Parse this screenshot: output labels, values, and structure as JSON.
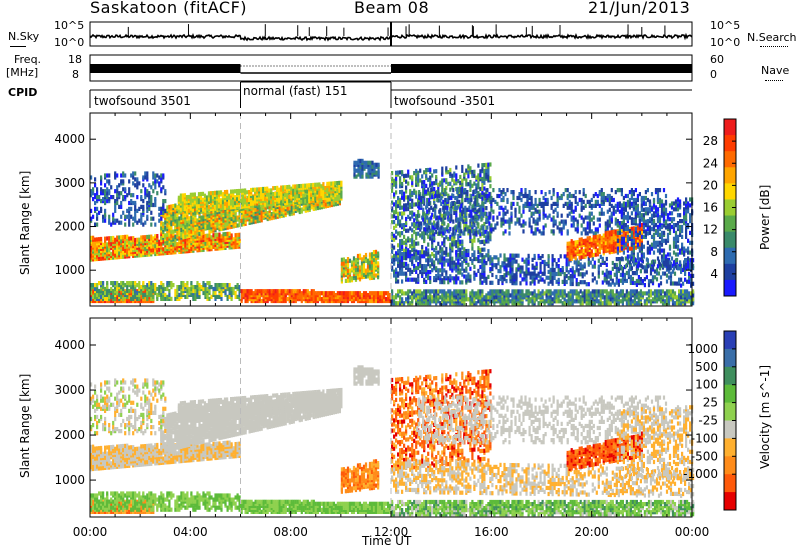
{
  "header": {
    "station": "Saskatoon (fitACF)",
    "beam": "Beam 08",
    "date": "21/Jun/2013"
  },
  "side_labels": {
    "nsky": "N.Sky",
    "freq_line1": "Freq.",
    "freq_line2": "[MHz]",
    "cpid": "CPID",
    "nsearch": "N.Search",
    "nave": "Nave"
  },
  "strip_ticks": {
    "nsky_top": "10^5",
    "nsky_bottom": "10^0",
    "freq_top": "18",
    "freq_bottom": "8",
    "nsearch_top": "10^5",
    "nsearch_bottom": "10^0",
    "nave_top": "60",
    "nave_bottom": "0"
  },
  "cpid_segments": [
    {
      "label": "twofsound 3501",
      "start_hour": 0,
      "end_hour": 6
    },
    {
      "label": "normal (fast) 151",
      "start_hour": 6,
      "end_hour": 12
    },
    {
      "label": "twofsound -3501",
      "start_hour": 12,
      "end_hour": 24
    }
  ],
  "chart_data": [
    {
      "type": "heatmap",
      "title": "",
      "xlabel": "Time UT",
      "ylabel": "Slant Range [km]",
      "x_ticks": [
        "00:00",
        "04:00",
        "08:00",
        "12:00",
        "16:00",
        "20:00",
        "00:00"
      ],
      "xlim_hours": [
        0,
        24
      ],
      "y_ticks": [
        "1000",
        "2000",
        "3000",
        "4000"
      ],
      "ylim": [
        180,
        4600
      ],
      "colorbar": {
        "label": "Power [dB]",
        "ticks": [
          "4",
          "8",
          "12",
          "16",
          "20",
          "24",
          "28"
        ],
        "range": [
          0,
          32
        ],
        "colors": [
          "#1a1aff",
          "#1e3fa0",
          "#2e6bb0",
          "#3a8a6a",
          "#5aaa4a",
          "#9acd32",
          "#ffd700",
          "#ffa500",
          "#ff6a00",
          "#ff3c00",
          "#ee1c1c"
        ]
      }
    },
    {
      "type": "heatmap",
      "title": "",
      "xlabel": "Time UT",
      "ylabel": "Slant Range [km]",
      "x_ticks": [
        "00:00",
        "04:00",
        "08:00",
        "12:00",
        "16:00",
        "20:00",
        "00:00"
      ],
      "xlim_hours": [
        0,
        24
      ],
      "y_ticks": [
        "1000",
        "2000",
        "3000",
        "4000"
      ],
      "ylim": [
        180,
        4600
      ],
      "colorbar": {
        "label": "Velocity [m s^-1]",
        "ticks": [
          "1000",
          "500",
          "100",
          "25",
          "-25",
          "-100",
          "-500",
          "-1000"
        ],
        "colors": [
          "#2a3fb5",
          "#3a6ea8",
          "#3f8f5e",
          "#5dbb3a",
          "#8fd14f",
          "#c8c8c0",
          "#ffb030",
          "#ff8c1a",
          "#ff5a0a",
          "#e60000"
        ]
      }
    }
  ]
}
